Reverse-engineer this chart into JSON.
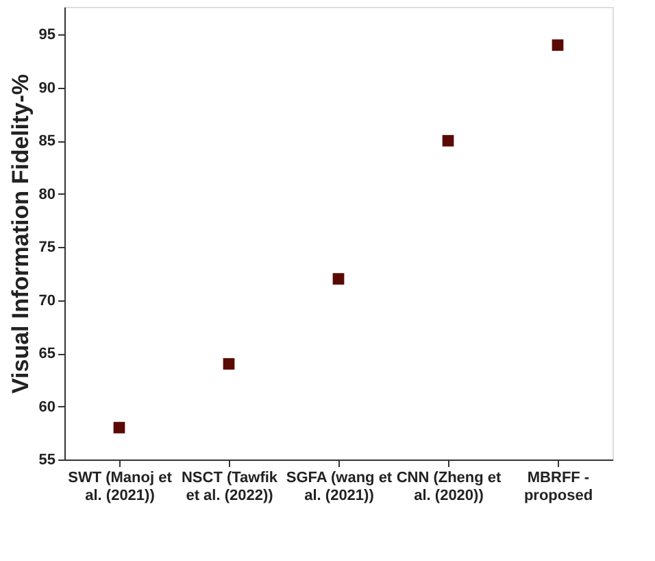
{
  "chart_data": {
    "type": "scatter",
    "categories": [
      "SWT (Manoj et al. (2021))",
      "NSCT (Tawfik et al. (2022))",
      "SGFA (wang et al. (2021))",
      "CNN (Zheng et al. (2020))",
      "MBRFF - proposed"
    ],
    "values": [
      58,
      64,
      72,
      85,
      94
    ],
    "color": "#5a0a05",
    "marker": "square",
    "ylabel": "Visual Information Fidelity-%",
    "ylim": [
      55,
      97.6
    ],
    "yticks": [
      55,
      60,
      65,
      70,
      75,
      80,
      85,
      90,
      95
    ],
    "grid": false
  }
}
